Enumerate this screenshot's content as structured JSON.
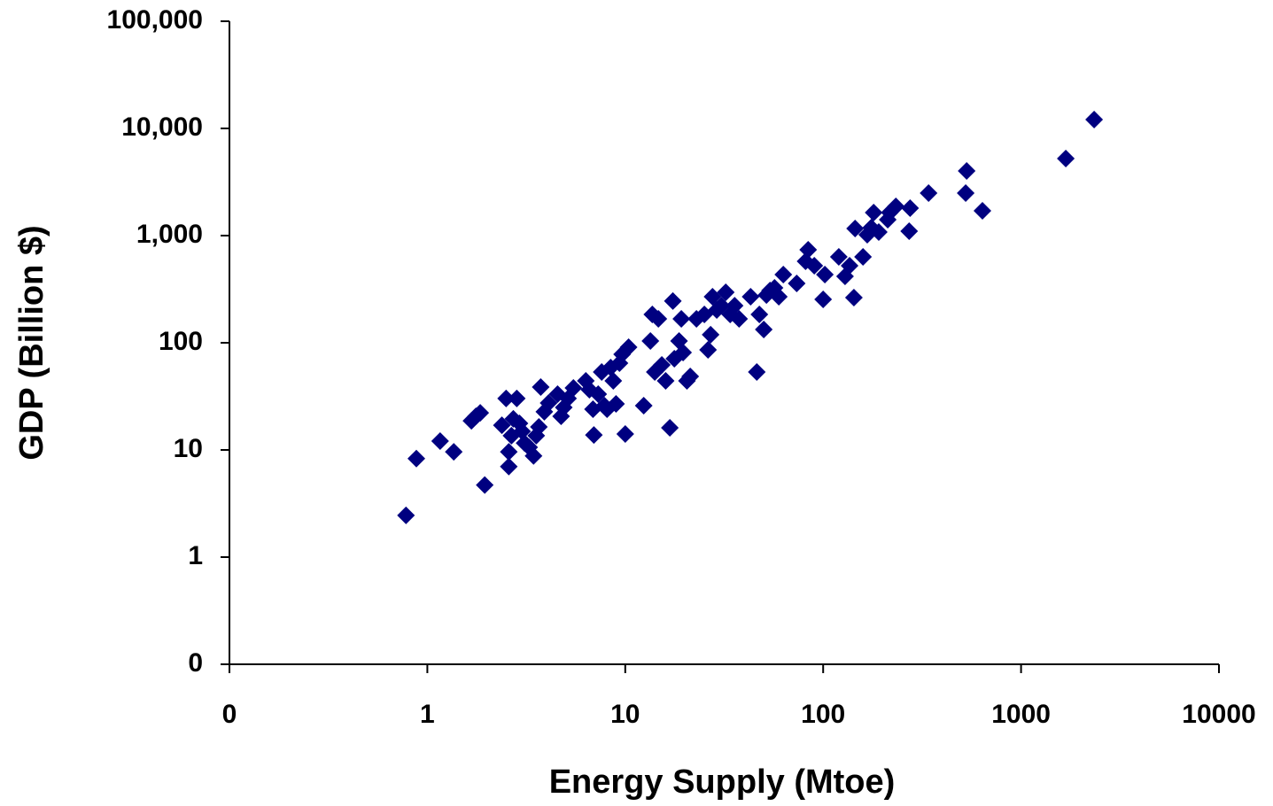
{
  "chart_data": {
    "type": "scatter",
    "x_label": "Energy Supply (Mtoe)",
    "y_label": "GDP (Billion $)",
    "xlog": true,
    "ylog": true,
    "xlim": [
      0.1,
      10000
    ],
    "ylim": [
      0.1,
      100000
    ],
    "xticks": [
      {
        "value": 0.1,
        "label": "0"
      },
      1,
      10,
      100,
      1000,
      10000
    ],
    "yticks": [
      {
        "value": 0.1,
        "label": "0"
      },
      1,
      10,
      100,
      {
        "value": 1000,
        "label": "1,000"
      },
      {
        "value": 10000,
        "label": "10,000"
      },
      {
        "value": 100000,
        "label": "100,000"
      }
    ],
    "color": "#000080",
    "x": [
      0.78,
      0.88,
      1.16,
      1.36,
      1.67,
      1.76,
      1.85,
      1.95,
      2.38,
      2.5,
      2.58,
      2.58,
      2.66,
      2.72,
      2.83,
      2.92,
      3.01,
      3.1,
      3.27,
      3.44,
      3.55,
      3.66,
      3.74,
      3.9,
      4.1,
      4.55,
      4.74,
      4.89,
      5.14,
      5.47,
      6.32,
      6.59,
      6.87,
      6.94,
      7.3,
      7.6,
      7.85,
      8.09,
      8.44,
      8.7,
      8.98,
      9.35,
      9.64,
      10.0,
      10.4,
      12.4,
      13.4,
      13.7,
      14.1,
      14.7,
      15.3,
      16.0,
      16.8,
      17.4,
      17.7,
      18.7,
      19.2,
      19.6,
      20.5,
      21.3,
      22.9,
      25.1,
      26.2,
      27.0,
      27.6,
      29.0,
      30.6,
      32.2,
      33.9,
      35.7,
      37.6,
      43.0,
      46.2,
      47.6,
      50.1,
      51.7,
      53.9,
      56.8,
      59.7,
      62.9,
      73.5,
      81.5,
      84,
      90.2,
      100,
      102,
      120,
      129,
      136,
      143,
      145,
      159,
      167,
      175,
      180,
      191,
      212,
      217,
      233,
      272,
      275,
      341,
      525,
      531,
      638,
      1683,
      2340
    ],
    "values": [
      2.45,
      8.3,
      12.1,
      9.6,
      18.7,
      20.6,
      22.2,
      4.7,
      17.0,
      30.2,
      9.6,
      7.0,
      13.6,
      19.5,
      30.2,
      17.7,
      14.9,
      11.6,
      10.6,
      8.8,
      13.6,
      16.4,
      38.6,
      22.7,
      27.4,
      33.2,
      20.6,
      24.9,
      30.2,
      37.9,
      44.1,
      36.5,
      24.0,
      13.8,
      33.2,
      53.4,
      25.9,
      24.0,
      58.7,
      44.1,
      26.9,
      64.6,
      78.1,
      14.1,
      90.9,
      25.9,
      104,
      184,
      53.4,
      167,
      62.1,
      44.1,
      16.1,
      245,
      71.0,
      104,
      167,
      81.1,
      44.1,
      48.5,
      167,
      184,
      85.9,
      119,
      269,
      202,
      222,
      296,
      184,
      222,
      167,
      269,
      53.4,
      184,
      133,
      279,
      307,
      325,
      269,
      433,
      358,
      576,
      738,
      524,
      254,
      433,
      634,
      417,
      524,
      264,
      1164,
      634,
      1019,
      1187,
      1640,
      1080,
      1408,
      1640,
      1875,
      1100,
      1805,
      2493,
      2493,
      4013,
      1703,
      5236,
      12100
    ]
  }
}
